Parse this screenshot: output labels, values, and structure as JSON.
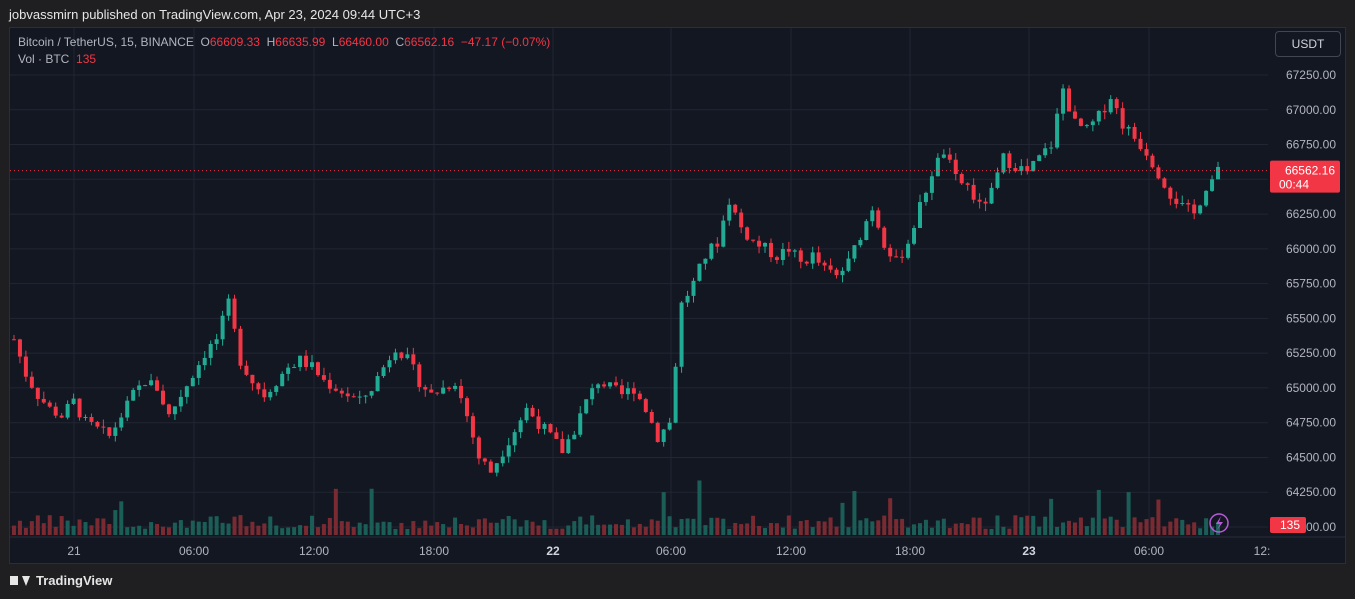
{
  "header": {
    "published_line": "jobvassmirn published on TradingView.com, Apr 23, 2024 09:44 UTC+3"
  },
  "legend": {
    "symbol": "Bitcoin / TetherUS, 15, BINANCE",
    "o_label": "O",
    "o_value": "66609.33",
    "h_label": "H",
    "h_value": "66635.99",
    "l_label": "L",
    "l_value": "66460.00",
    "c_label": "C",
    "c_value": "66562.16",
    "change": "−47.17 (−0.07%)",
    "vol_label": "Vol · BTC",
    "vol_value": "135"
  },
  "currency_button": "USDT",
  "footer": {
    "brand": "TradingView"
  },
  "colors": {
    "up": "#22ab94",
    "down": "#f23645",
    "up_vol": "#1b5e58",
    "down_vol": "#7a2a31",
    "grid": "#222633",
    "bg": "#131722"
  },
  "chart_data": {
    "type": "candlestick",
    "title": "Bitcoin / TetherUS, 15, BINANCE",
    "y_ticks": [
      "67250.00",
      "67000.00",
      "66750.00",
      "66500.00",
      "66250.00",
      "66000.00",
      "65750.00",
      "65500.00",
      "65250.00",
      "65000.00",
      "64750.00",
      "64500.00",
      "64250.00",
      "64000.00"
    ],
    "x_ticks": [
      "21",
      "06:00",
      "12:00",
      "18:00",
      "22",
      "06:00",
      "12:00",
      "18:00",
      "23",
      "06:00",
      "12:"
    ],
    "ylim": [
      64000,
      67400
    ],
    "last_price": "66562.16",
    "countdown": "00:44",
    "last_volume": "135",
    "series": [
      {
        "name": "Bitcoin / TetherUS",
        "close_path": [
          65350,
          65100,
          64950,
          64850,
          64800,
          64900,
          64750,
          64700,
          64650,
          64800,
          64950,
          65050,
          65000,
          64800,
          64950,
          65100,
          65250,
          65350,
          65600,
          65200,
          65050,
          64950,
          65050,
          65150,
          65200,
          65150,
          65050,
          65000,
          64950,
          64900,
          65000,
          65150,
          65300,
          65200,
          65050,
          64950,
          65000,
          65050,
          64800,
          64500,
          64400,
          64550,
          64700,
          64850,
          64750,
          64650,
          64550,
          64700,
          64900,
          65050,
          65000,
          64950,
          65000,
          64850,
          64650,
          64750,
          65600,
          65750,
          65950,
          66050,
          66350,
          66150,
          66050,
          66000,
          65950,
          66000,
          65900,
          65950,
          65850,
          65800,
          65900,
          66100,
          66300,
          66050,
          65900,
          66050,
          66300,
          66550,
          66700,
          66500,
          66450,
          66300,
          66400,
          66650,
          66600,
          66550,
          66650,
          66750,
          67150,
          66900,
          66850,
          66950,
          67100,
          66900,
          66800,
          66700,
          66550,
          66400,
          66300,
          66250,
          66450,
          66550
        ]
      }
    ]
  }
}
